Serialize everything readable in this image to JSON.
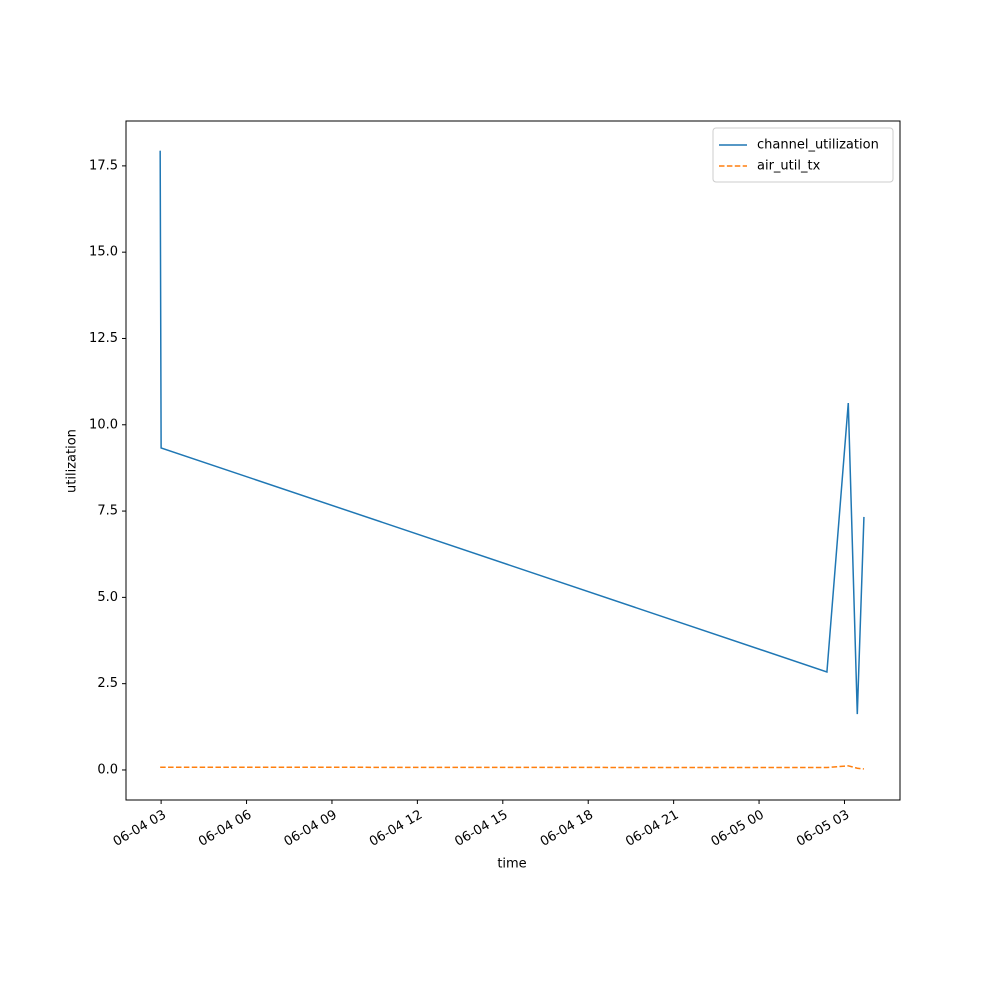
{
  "chart_data": {
    "type": "line",
    "x_label": "time",
    "y_label": "utilization",
    "x": [
      "06-04 02:58",
      "06-04 03:00",
      "06-05 02:23",
      "06-05 03:08",
      "06-05 03:27",
      "06-05 03:41"
    ],
    "series": [
      {
        "name": "channel_utilization",
        "color": "#1f77b4",
        "dash": "solid",
        "values": [
          17.94,
          9.33,
          2.84,
          10.63,
          1.62,
          7.33
        ]
      },
      {
        "name": "air_util_tx",
        "color": "#ff7f0e",
        "dash": "dashed",
        "values": [
          0.08,
          0.08,
          0.07,
          0.12,
          0.05,
          0.03
        ]
      }
    ],
    "xlim": [
      "06-04 01:46",
      "06-05 04:57"
    ],
    "xticks": [
      {
        "value": "06-04 03:00",
        "label": "06-04 03"
      },
      {
        "value": "06-04 06:00",
        "label": "06-04 06"
      },
      {
        "value": "06-04 09:00",
        "label": "06-04 09"
      },
      {
        "value": "06-04 12:00",
        "label": "06-04 12"
      },
      {
        "value": "06-04 15:00",
        "label": "06-04 15"
      },
      {
        "value": "06-04 18:00",
        "label": "06-04 18"
      },
      {
        "value": "06-04 21:00",
        "label": "06-04 21"
      },
      {
        "value": "06-05 00:00",
        "label": "06-05 00"
      },
      {
        "value": "06-05 03:00",
        "label": "06-05 03"
      }
    ],
    "ylim": [
      -0.87,
      18.8
    ],
    "yticks": [
      {
        "value": 0,
        "label": "0.0"
      },
      2.5,
      {
        "value": 5,
        "label": "5.0"
      },
      7.5,
      {
        "value": 10,
        "label": "10.0"
      },
      12.5,
      {
        "value": 15,
        "label": "15.0"
      },
      17.5
    ],
    "grid": false,
    "legend": "upper right"
  }
}
